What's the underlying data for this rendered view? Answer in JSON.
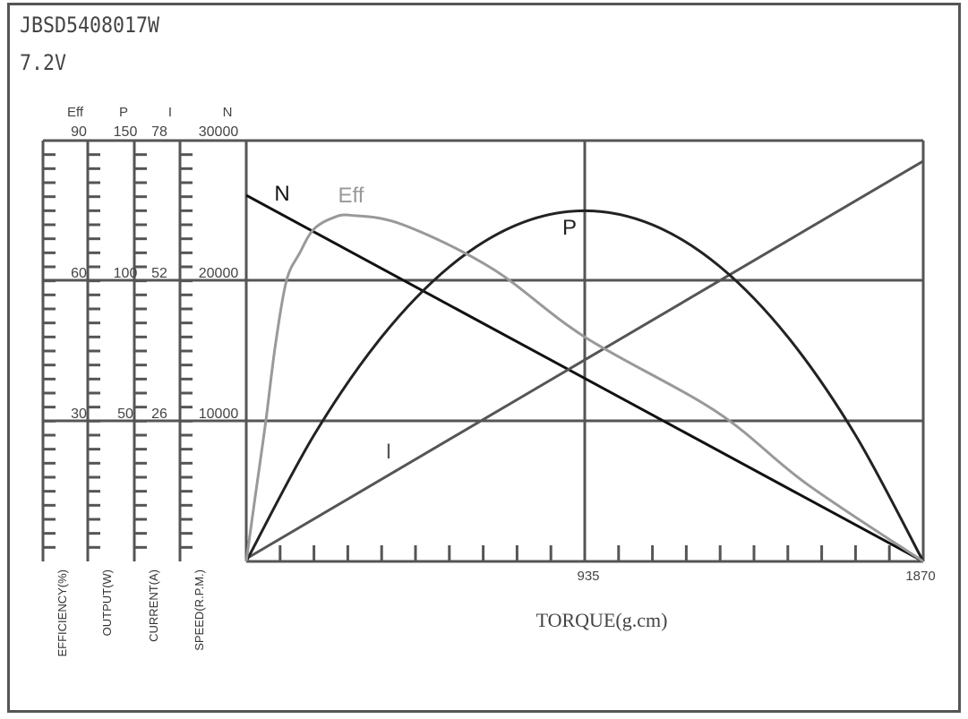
{
  "header": {
    "model": "JBSD5408017W",
    "voltage": "7.2V"
  },
  "chart_data": {
    "type": "line",
    "xlabel": "TORQUE(g.cm)",
    "xlim": [
      0,
      1870
    ],
    "x_ticks": [
      "935",
      "1870"
    ],
    "grid": true,
    "axes": [
      {
        "key": "Eff",
        "header": "Eff",
        "label": "EFFICIENCY(%)",
        "max": 90,
        "ticks": [
          "30",
          "60",
          "90"
        ]
      },
      {
        "key": "P",
        "header": "P",
        "label": "OUTPUT(W)",
        "max": 150,
        "ticks": [
          "50",
          "100",
          "150"
        ]
      },
      {
        "key": "I",
        "header": "I",
        "label": "CURRENT(A)",
        "max": 78,
        "ticks": [
          "26",
          "52",
          "78"
        ]
      },
      {
        "key": "N",
        "header": "N",
        "label": "SPEED(R.P.M.)",
        "max": 30000,
        "ticks": [
          "10000",
          "20000",
          "30000"
        ]
      }
    ],
    "series": [
      {
        "name": "N",
        "axis": "N",
        "color": "#111111",
        "x": [
          0,
          1870
        ],
        "y": [
          26100,
          0
        ]
      },
      {
        "name": "I",
        "axis": "I",
        "color": "#555555",
        "x": [
          0,
          1870
        ],
        "y": [
          0.5,
          74.2
        ]
      },
      {
        "name": "P",
        "axis": "P",
        "color": "#222222",
        "x": [
          0,
          187,
          374,
          561,
          748,
          935,
          1122,
          1309,
          1496,
          1683,
          1870
        ],
        "y": [
          0,
          45,
          80,
          105,
          120,
          125,
          120,
          105,
          80,
          45,
          0
        ]
      },
      {
        "name": "Eff",
        "axis": "Eff",
        "color": "#999999",
        "x": [
          0,
          25,
          54,
          80,
          111,
          148,
          186,
          240,
          292,
          433,
          680,
          935,
          1299,
          1546,
          1870
        ],
        "y": [
          0,
          14,
          30,
          46,
          60,
          66,
          71,
          73.5,
          74,
          72,
          62.6,
          48,
          32,
          16.7,
          0
        ]
      }
    ]
  }
}
